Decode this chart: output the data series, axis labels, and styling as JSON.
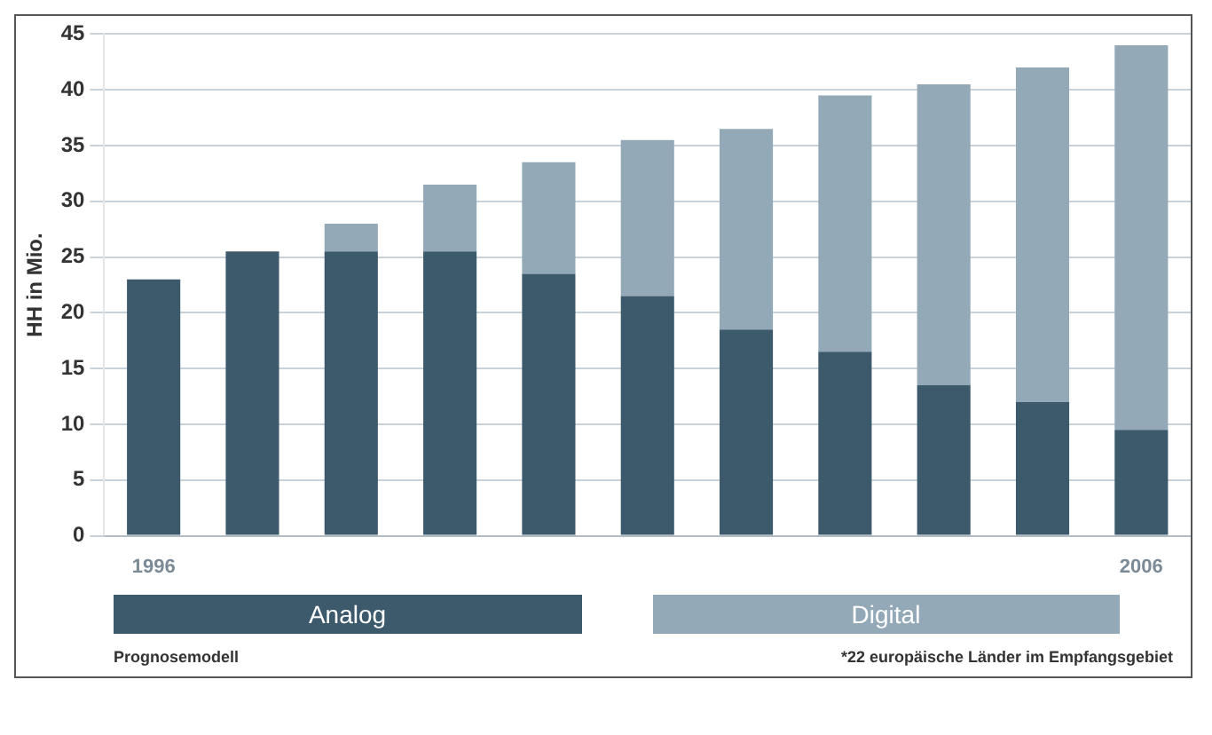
{
  "chart_data": {
    "type": "bar",
    "stacked": true,
    "ylabel": "HH in Mio.",
    "categories": [
      "1996",
      null,
      null,
      null,
      null,
      null,
      null,
      null,
      null,
      null,
      "2006"
    ],
    "series": [
      {
        "name": "Analog",
        "color": "#3d5a6c",
        "values": [
          23,
          25.5,
          25.5,
          25.5,
          23.5,
          21.5,
          18.5,
          16.5,
          13.5,
          12,
          9.5
        ]
      },
      {
        "name": "Digital",
        "color": "#93a9b8",
        "values": [
          0,
          0,
          2.5,
          6,
          10,
          14,
          18,
          23,
          27,
          30,
          34.5
        ]
      }
    ],
    "ylim": [
      0,
      45
    ],
    "yticks": [
      0,
      5,
      10,
      15,
      20,
      25,
      30,
      35,
      40,
      45
    ],
    "grid": "y",
    "legend": "bottom",
    "annotations": [
      "Prognosemodell",
      "*22 europäische Länder im Empfangsgebiet"
    ]
  }
}
